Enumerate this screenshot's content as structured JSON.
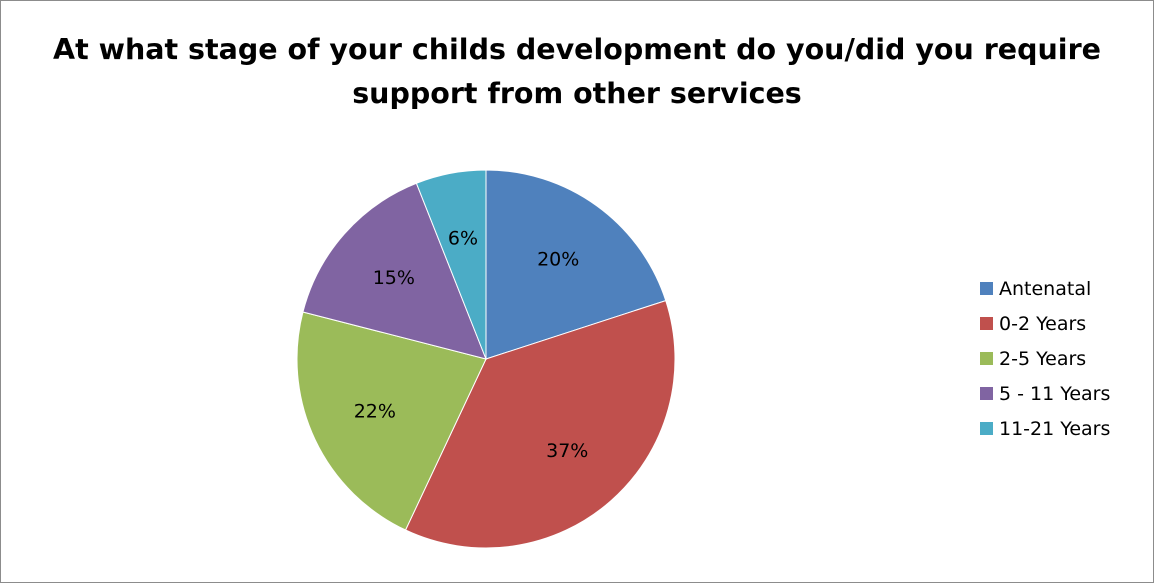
{
  "chart_data": {
    "type": "pie",
    "title": "At what stage of your childs development do you/did you require support from other services",
    "title_lines": [
      "At what stage of your childs development do you/did you require",
      "support from other services"
    ],
    "categories": [
      "Antenatal",
      "0-2 Years",
      "2-5 Years",
      "5 - 11 Years",
      "11-21 Years"
    ],
    "values": [
      20,
      37,
      22,
      15,
      6
    ],
    "data_labels": [
      "20%",
      "37%",
      "22%",
      "15%",
      "6%"
    ],
    "colors": [
      "#4f81bd",
      "#c0504d",
      "#9bbb59",
      "#8064a2",
      "#4bacc6"
    ],
    "legend_position": "right"
  }
}
